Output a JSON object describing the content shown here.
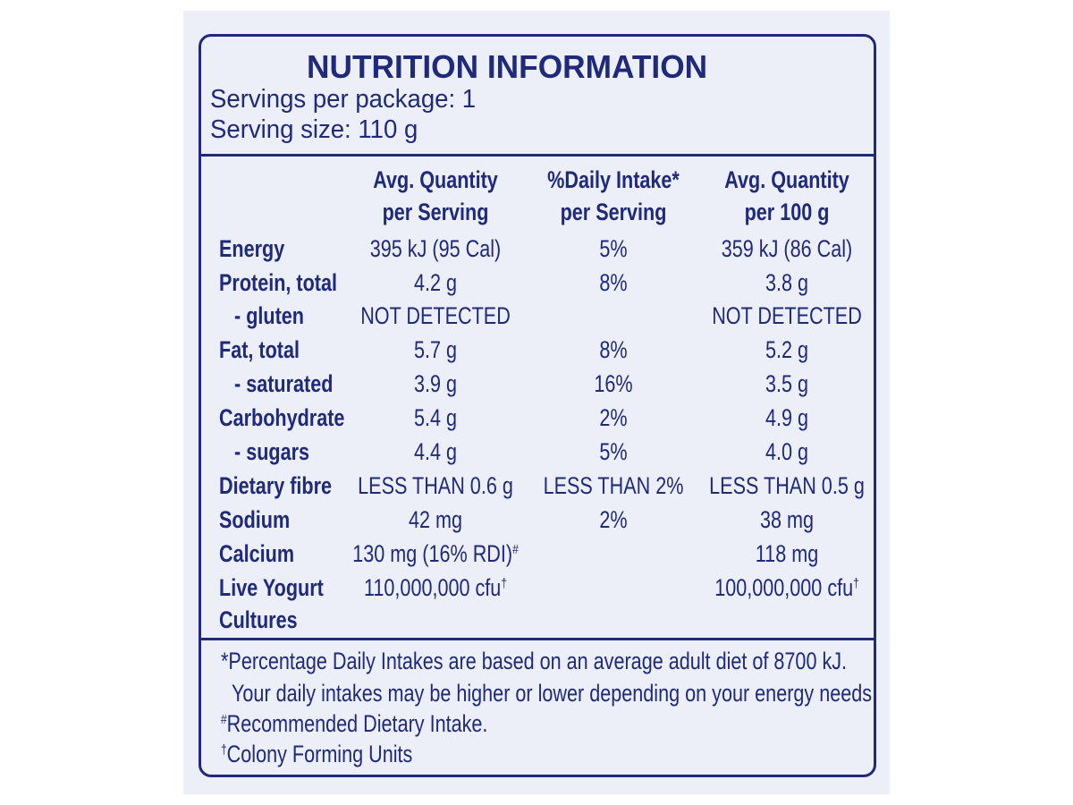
{
  "header": {
    "title": "NUTRITION INFORMATION",
    "servings": "Servings per package: 1",
    "serving_size": "Serving size: 110 g"
  },
  "table": {
    "columns": [
      [
        "Avg. Quantity",
        "per Serving"
      ],
      [
        "%Daily Intake*",
        "per Serving"
      ],
      [
        "Avg. Quantity",
        "per 100 g"
      ]
    ],
    "rows": [
      {
        "label": "Energy",
        "per_serving": "395 kJ (95 Cal)",
        "daily_intake": "5%",
        "per_100g": "359 kJ (86 Cal)"
      },
      {
        "label": "Protein, total",
        "per_serving": "4.2 g",
        "daily_intake": "8%",
        "per_100g": "3.8 g"
      },
      {
        "label": "- gluten",
        "sub": true,
        "per_serving": "NOT DETECTED",
        "per_100g": "NOT DETECTED"
      },
      {
        "label": "Fat, total",
        "per_serving": "5.7 g",
        "daily_intake": "8%",
        "per_100g": "5.2 g"
      },
      {
        "label": "- saturated",
        "sub": true,
        "per_serving": "3.9 g",
        "daily_intake": "16%",
        "per_100g": "3.5 g"
      },
      {
        "label": "Carbohydrate",
        "per_serving": "5.4 g",
        "daily_intake": "2%",
        "per_100g": "4.9 g"
      },
      {
        "label": "- sugars",
        "sub": true,
        "per_serving": "4.4 g",
        "daily_intake": "5%",
        "per_100g": "4.0 g"
      },
      {
        "label": "Dietary fibre",
        "per_serving": "LESS THAN 0.6 g",
        "daily_intake": "LESS THAN 2%",
        "per_100g": "LESS THAN 0.5 g"
      },
      {
        "label": "Sodium",
        "per_serving": "42 mg",
        "daily_intake": "2%",
        "per_100g": "38 mg"
      },
      {
        "label": "Calcium",
        "per_serving": "130 mg (16% RDI)",
        "per_serving_note": "#",
        "per_100g": "118 mg"
      },
      {
        "label": "Live Yogurt",
        "label_2": "Cultures",
        "per_serving": "110,000,000 cfu",
        "per_serving_note": "†",
        "per_100g": "100,000,000 cfu",
        "per_100g_note": "†"
      }
    ]
  },
  "footnotes": [
    {
      "text": "*Percentage Daily Intakes are based on an average adult diet of 8700 kJ."
    },
    {
      "text": "Your daily intakes may be higher or lower depending on your energy needs."
    },
    {
      "mark": "#",
      "text": "Recommended Dietary Intake."
    },
    {
      "mark": "†",
      "text": "Colony Forming Units"
    }
  ]
}
